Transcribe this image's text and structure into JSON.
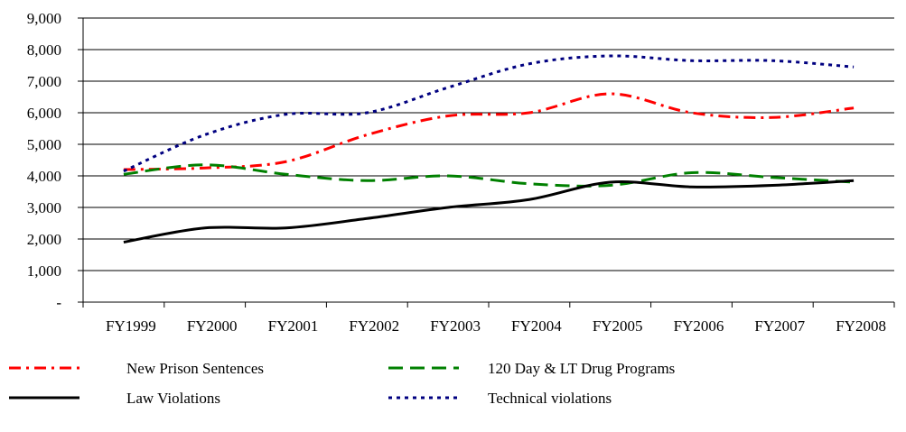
{
  "chart_data": {
    "type": "line",
    "title": "",
    "xlabel": "",
    "ylabel": "",
    "categories": [
      "FY1999",
      "FY2000",
      "FY2001",
      "FY2002",
      "FY2003",
      "FY2004",
      "FY2005",
      "FY2006",
      "FY2007",
      "FY2008"
    ],
    "ylim": [
      0,
      9000
    ],
    "yticks": [
      0,
      1000,
      2000,
      3000,
      4000,
      5000,
      6000,
      7000,
      8000,
      9000
    ],
    "ytick_labels": [
      "-",
      "1,000",
      "2,000",
      "3,000",
      "4,000",
      "5,000",
      "6,000",
      "7,000",
      "8,000",
      "9,000"
    ],
    "grid": true,
    "legend_position": "bottom",
    "series": [
      {
        "name": "New Prison Sentences",
        "color": "#ff0000",
        "dash": "dash-dot",
        "values": [
          4200,
          4250,
          4450,
          5300,
          5900,
          6000,
          6600,
          6000,
          5850,
          6150
        ]
      },
      {
        "name": "120 Day & LT Drug Programs",
        "color": "#008000",
        "dash": "long-dash",
        "values": [
          4050,
          4350,
          4050,
          3850,
          4000,
          3750,
          3700,
          4100,
          3950,
          3800
        ]
      },
      {
        "name": "Law Violations",
        "color": "#000000",
        "dash": "solid",
        "values": [
          1900,
          2350,
          2350,
          2650,
          3000,
          3250,
          3800,
          3650,
          3700,
          3850
        ]
      },
      {
        "name": "Technical violations",
        "color": "#000080",
        "dash": "dotted",
        "values": [
          4150,
          5300,
          5950,
          6000,
          6800,
          7550,
          7800,
          7650,
          7650,
          7450
        ]
      }
    ]
  }
}
